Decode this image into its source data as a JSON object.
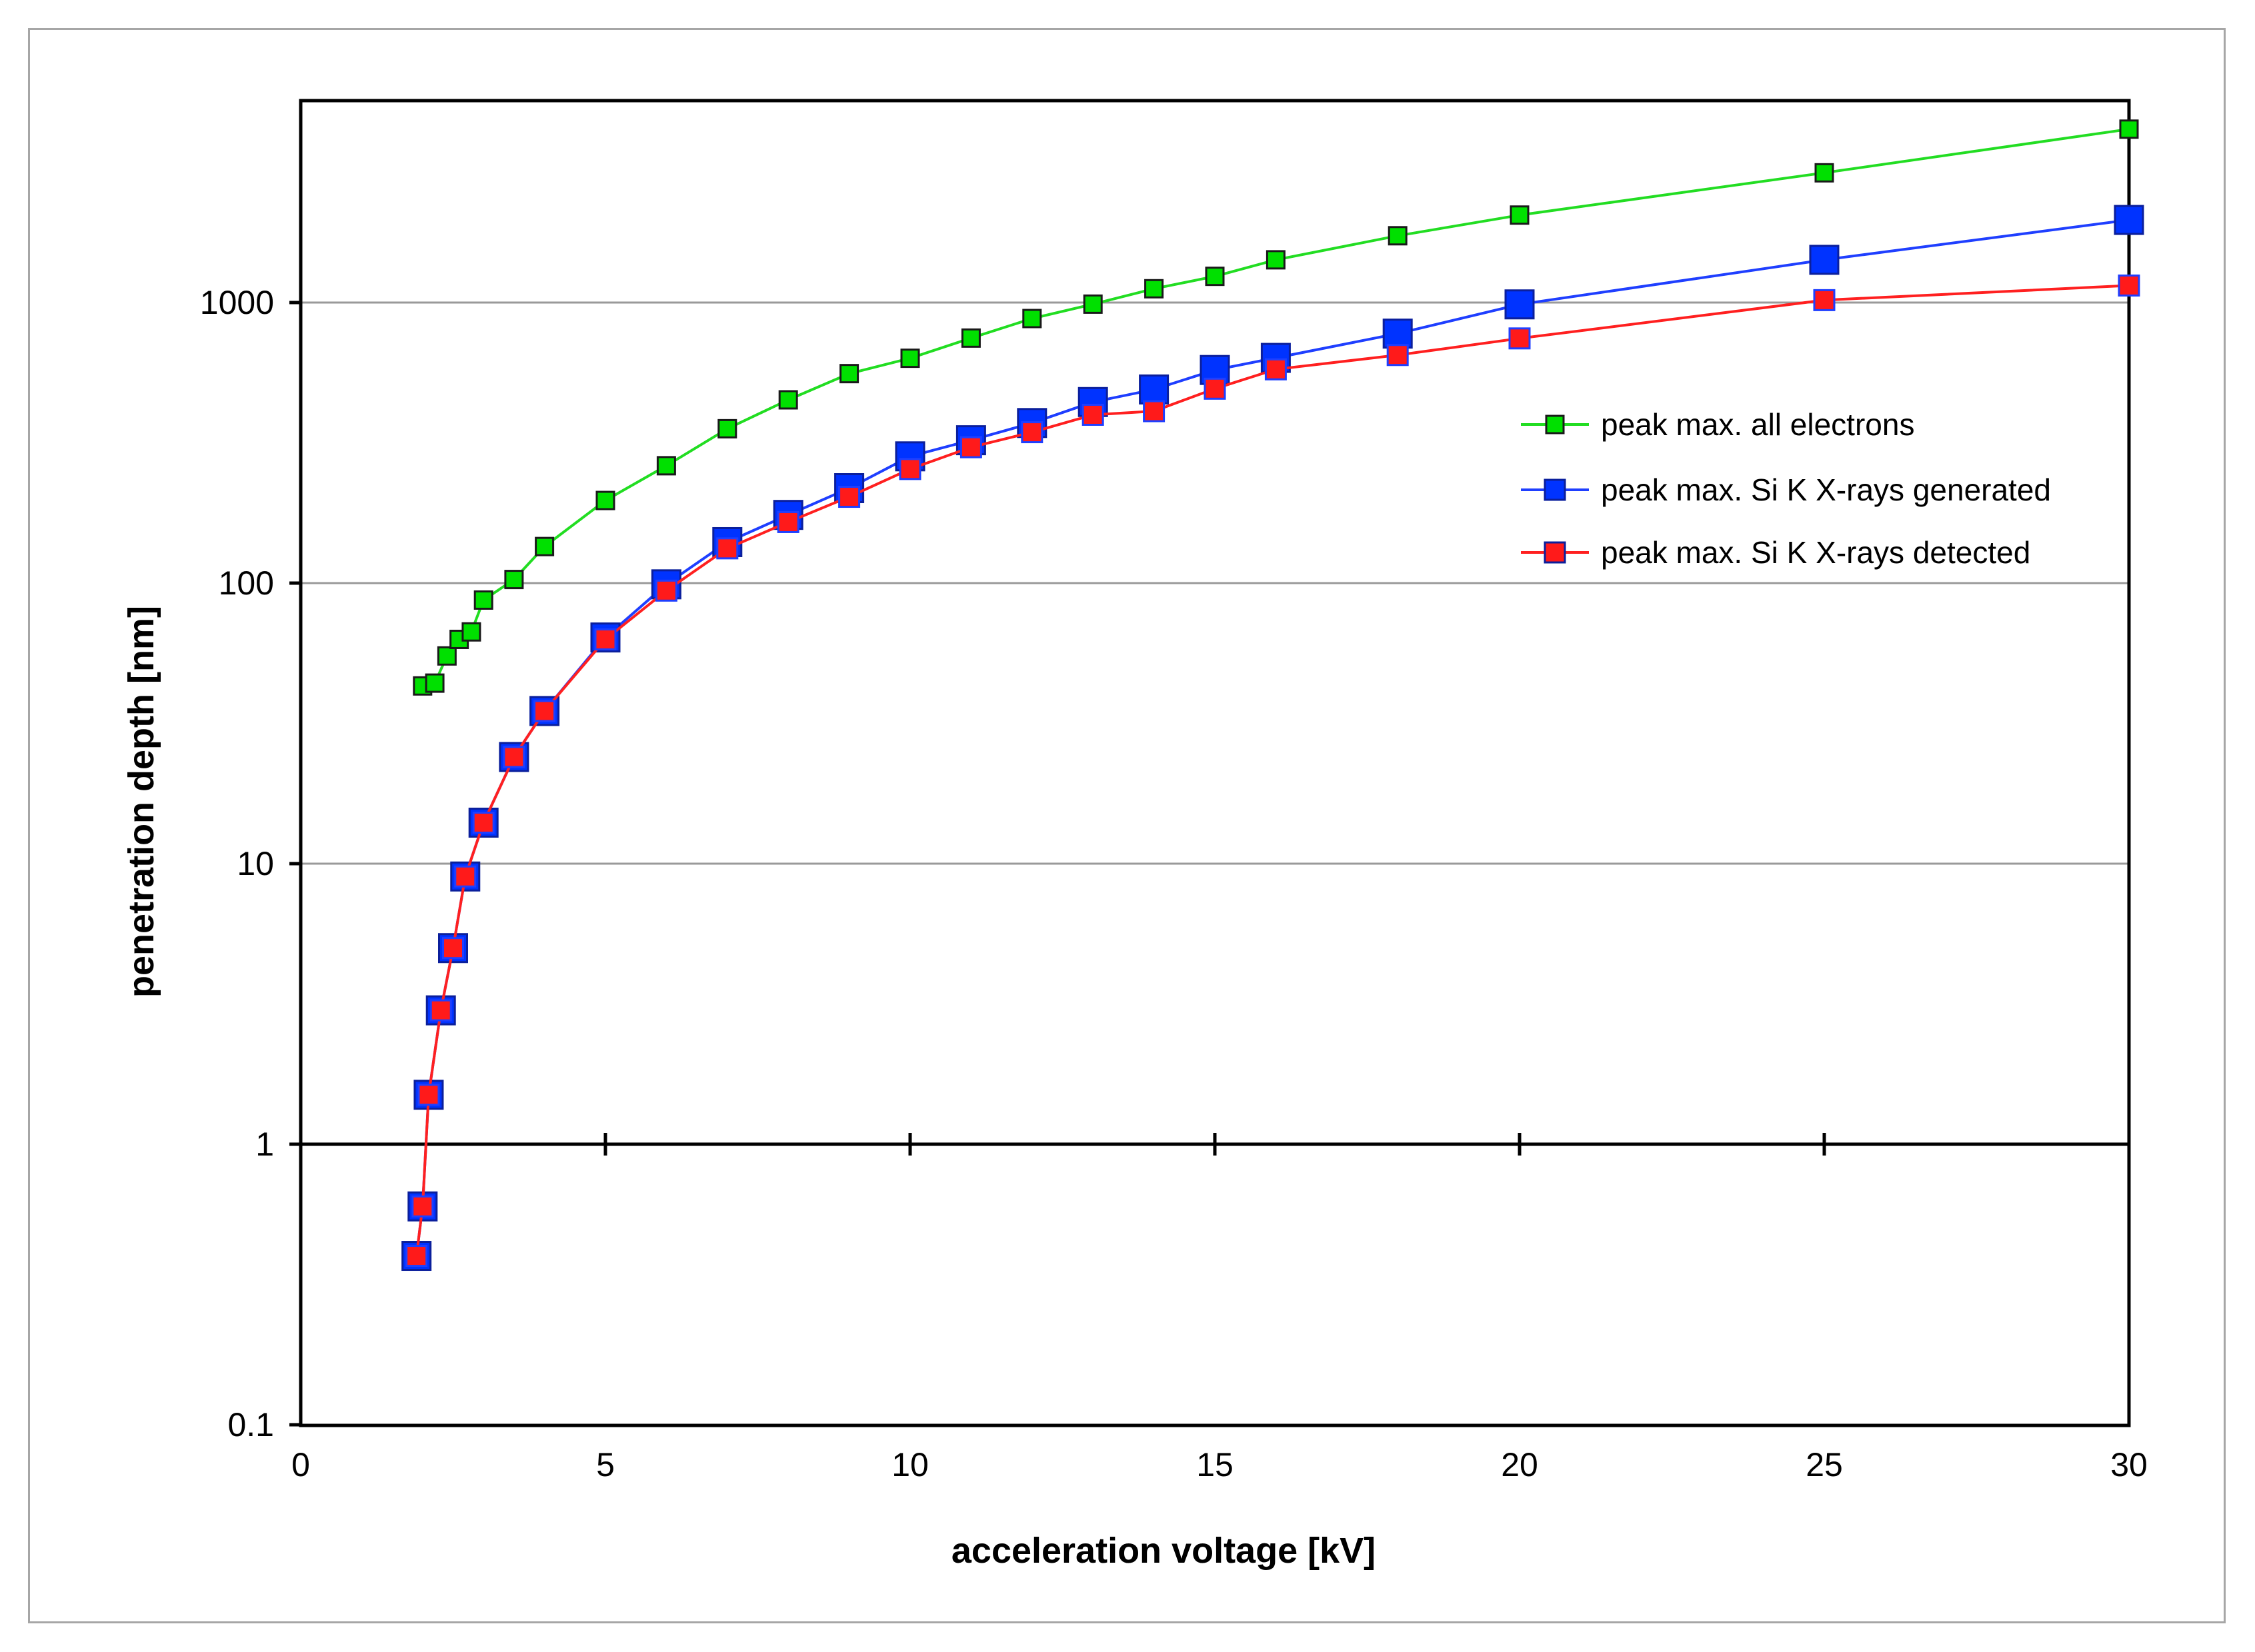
{
  "chart_data": {
    "type": "line",
    "title": "",
    "xlabel": "acceleration voltage [kV]",
    "ylabel": "penetration depth [nm]",
    "xlim": [
      0,
      30
    ],
    "ylim": [
      0.1,
      5000
    ],
    "yscale": "log",
    "x_ticks": [
      0,
      5,
      10,
      15,
      20,
      25,
      30
    ],
    "y_ticks": [
      0.1,
      1,
      10,
      100,
      1000
    ],
    "x_tick_labels": [
      "0",
      "5",
      "10",
      "15",
      "20",
      "25",
      "30"
    ],
    "y_tick_labels": [
      "0.1",
      "1",
      "10",
      "100",
      "1000"
    ],
    "grid": "horizontal",
    "legend_position": "right",
    "series": [
      {
        "name": "peak max. all electrons",
        "color": "#00e000",
        "line_color": "#22dd22",
        "marker": "square-small",
        "x": [
          2,
          2.2,
          2.4,
          2.6,
          2.8,
          3,
          3.5,
          4,
          5,
          6,
          7,
          8,
          9,
          10,
          11,
          12,
          13,
          14,
          15,
          16,
          18,
          20,
          25,
          30
        ],
        "y": [
          43,
          44,
          55,
          63,
          67,
          87,
          103,
          135,
          197,
          262,
          355,
          450,
          558,
          633,
          747,
          877,
          987,
          1120,
          1240,
          1420,
          1730,
          2050,
          2900,
          4150
        ]
      },
      {
        "name": "peak max. Si K X-rays generated",
        "color": "#0033ff",
        "line_color": "#1f3fff",
        "marker": "square-large",
        "x": [
          1.9,
          2,
          2.1,
          2.3,
          2.5,
          2.7,
          3,
          3.5,
          4,
          5,
          6,
          7,
          8,
          9,
          10,
          11,
          12,
          13,
          14,
          15,
          16,
          18,
          20,
          25,
          30
        ],
        "y": [
          0.4,
          0.6,
          1.5,
          3.0,
          5.0,
          9.0,
          14,
          24,
          35,
          64,
          99,
          140,
          175,
          218,
          283,
          323,
          372,
          442,
          490,
          575,
          635,
          775,
          985,
          1420,
          1970
        ]
      },
      {
        "name": "peak max. Si K X-rays detected",
        "color": "#ff1a1a",
        "line_color": "#ff2020",
        "marker": "square-medium",
        "x": [
          1.9,
          2,
          2.1,
          2.3,
          2.5,
          2.7,
          3,
          3.5,
          4,
          5,
          6,
          7,
          8,
          9,
          10,
          11,
          12,
          13,
          14,
          15,
          16,
          18,
          20,
          25,
          30
        ],
        "y": [
          0.4,
          0.6,
          1.5,
          3.0,
          5.0,
          9.0,
          14,
          24,
          35,
          63,
          94,
          133,
          165,
          203,
          255,
          305,
          345,
          398,
          410,
          493,
          578,
          650,
          745,
          1020,
          1150
        ]
      }
    ]
  }
}
